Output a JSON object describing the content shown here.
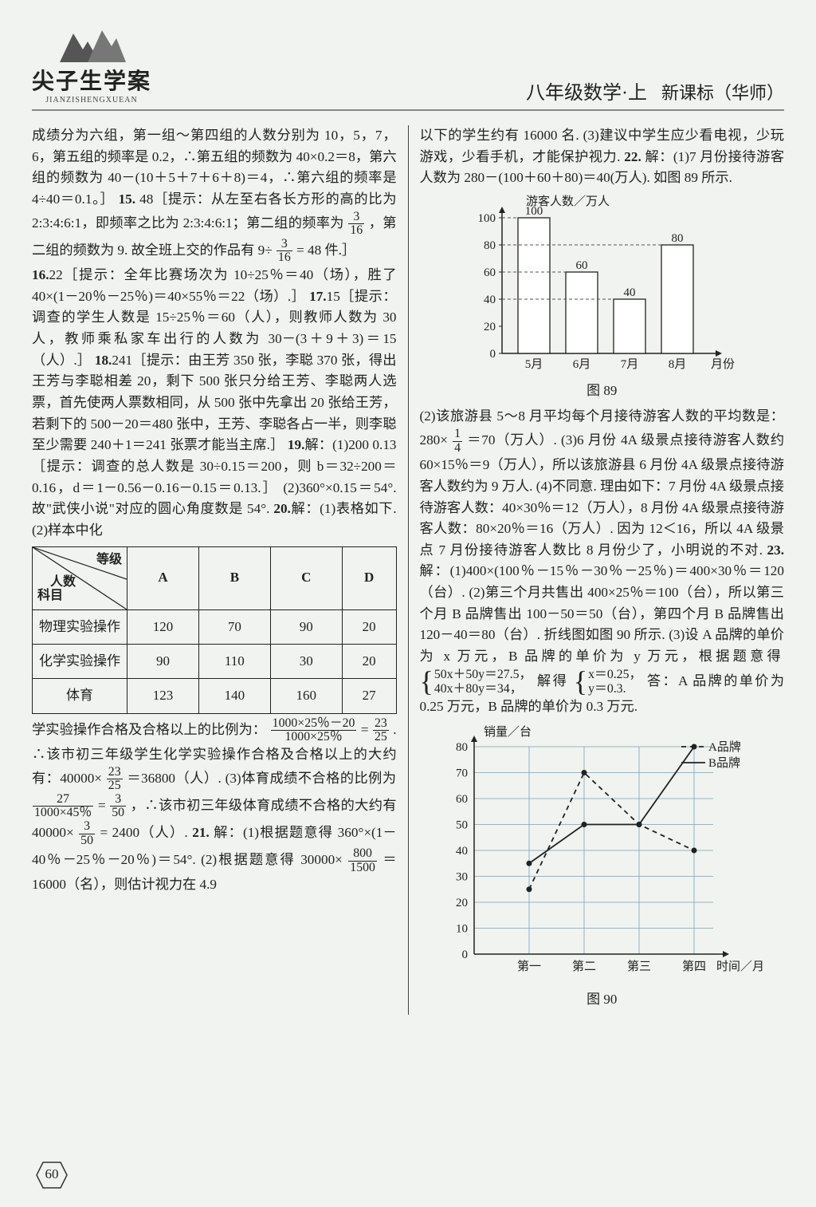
{
  "header": {
    "logo_title": "尖子生学案",
    "logo_pinyin": "JIANZISHENGXUEAN",
    "right_main": "八年级数学·上",
    "right_sub": "新课标（华师）"
  },
  "page_number": "60",
  "left": {
    "para1_a": "成绩分为六组，第一组～第四组的人数分别为 10，5，7，6，第五组的频率是 0.2，∴第五组的频数为 40×0.2＝8，第六组的频数为 40－(10＋5＋7＋6＋8)＝4，∴第六组的频率是 4÷40＝0.1。］ ",
    "q15": "15.",
    "para15": "48［提示：从左至右各长方形的高的比为 2:3:4:6:1，即频率之比为 2:3:4:6:1；第二组的频率为 ",
    "frac_3_16_n": "3",
    "frac_3_16_d": "16",
    "para15b": "，第二组的频数为 9. 故全班上交的作品有 9÷",
    "para15c": " = 48 件.］",
    "q16": "16.",
    "para16": "22［提示：全年比赛场次为 10÷25％＝40（场），胜了 40×(1－20％－25％)＝40×55％＝22（场）.］ ",
    "q17": "17.",
    "para17": "15［提示：调查的学生人数是 15÷25％＝60（人），则教师人数为 30 人，教师乘私家车出行的人数为 30－(3＋9＋3)＝15（人）.］ ",
    "q18": "18.",
    "para18": "241［提示：由王芳 350 张，李聪 370 张，得出王芳与李聪相差 20，剩下 500 张只分给王芳、李聪两人选票，首先使两人票数相同，从 500 张中先拿出 20 张给王芳，若剩下的 500－20＝480 张中，王芳、李聪各占一半，则李聪至少需要 240＋1＝241 张票才能当主席.］ ",
    "q19": "19.",
    "para19": "解：(1)200  0.13［提示：调查的总人数是 30÷0.15＝200，则 b＝32÷200＝0.16，d＝1－0.56－0.16－0.15＝0.13.］ (2)360°×0.15＝54°. 故\"武侠小说\"对应的圆心角度数是 54°. ",
    "q20": "20.",
    "para20a": "解：(1)表格如下.  (2)样本中化",
    "table": {
      "diag_top": "等级",
      "diag_mid": "人数",
      "diag_bot": "科目",
      "cols": [
        "A",
        "B",
        "C",
        "D"
      ],
      "rows": [
        {
          "label": "物理实验操作",
          "vals": [
            "120",
            "70",
            "90",
            "20"
          ]
        },
        {
          "label": "化学实验操作",
          "vals": [
            "90",
            "110",
            "30",
            "20"
          ]
        },
        {
          "label": "体育",
          "vals": [
            "123",
            "140",
            "160",
            "27"
          ]
        }
      ]
    },
    "para20b_a": "学实验操作合格及合格以上的比例为：",
    "frac_big_n": "1000×25％－20",
    "frac_big_d": "1000×25％",
    "eq_a": " = ",
    "frac_23_25_n": "23",
    "frac_23_25_d": "25",
    "para20b_b": ". ∴该市初三年级学生化学实验操作合格及合格以上的大约有：40000×",
    "para20b_c": "＝36800（人）.  (3)体育成绩不合格的比例为 ",
    "frac_27_n": "27",
    "frac_27_d": "1000×45％",
    "eq_b": " = ",
    "frac_3_50_n": "3",
    "frac_3_50_d": "50",
    "para20b_d": "，∴该市初三年级体育成绩不合格的大约有 40000×",
    "para20b_e": " = 2400（人）. ",
    "q21": "21.",
    "para21": "解：(1)根据题意得 360°×(1－40％－25％－20％)＝54°.  (2)根据题意得 30000×",
    "frac_800_n": "800",
    "frac_800_d": "1500",
    "para21b": "＝16000（名），则估计视力在 4.9"
  },
  "right": {
    "para_cont": "以下的学生约有 16000 名.  (3)建议中学生应少看电视，少玩游戏，少看手机，才能保护视力. ",
    "q22": "22.",
    "para22": "解：(1)7 月份接待游客人数为 280－(100＋60＋80)＝40(万人). 如图 89 所示.",
    "chart89": {
      "ylabel": "游客人数／万人",
      "yticks": [
        "0",
        "20",
        "40",
        "60",
        "80",
        "100"
      ],
      "xticks": [
        "5月",
        "6月",
        "7月",
        "8月"
      ],
      "xlabel_tail": "月份",
      "values": [
        100,
        60,
        40,
        80
      ],
      "bar_color": "#ffffff",
      "axis_color": "#222222",
      "dash_color": "#555555"
    },
    "fig89": "图 89",
    "para22b_a": "(2)该旅游县 5～8 月平均每个月接待游客人数的平均数是：280×",
    "frac_1_4_n": "1",
    "frac_1_4_d": "4",
    "para22b_b": "＝70（万人）.  (3)6 月份 4A 级景点接待游客人数约 60×15％＝9（万人），所以该旅游县 6 月份 4A 级景点接待游客人数约为 9 万人.  (4)不同意. 理由如下：7 月份 4A 级景点接待游客人数：40×30％＝12（万人），8 月份 4A 级景点接待游客人数：80×20％＝16（万人）. 因为 12＜16，所以 4A 级景点 7 月份接待游客人数比 8 月份少了，小明说的不对. ",
    "q23": "23.",
    "para23a": "解：(1)400×(100％－15％－30％－25％)＝400×30％＝120（台）.  (2)第三个月共售出 400×25％＝100（台），所以第三个月 B 品牌售出 100－50＝50（台），第四个月 B 品牌售出 120－40＝80（台）. 折线图如图 90 所示.  (3)设 A 品牌的单价为 x 万元，B 品牌的单价为 y 万元，根据题意得 ",
    "sys1a": "50x＋50y＝27.5，",
    "sys1b": "40x＋80y＝34，",
    "mid": "解得",
    "sys2a": "x＝0.25，",
    "sys2b": "y＝0.3.",
    "ans": "答：A 品牌的单价为 0.25 万元，B 品牌的单价为 0.3 万元.",
    "chart90": {
      "ylabel": "销量／台",
      "yticks": [
        "0",
        "10",
        "20",
        "30",
        "40",
        "50",
        "60",
        "70",
        "80"
      ],
      "xticks": [
        "第一",
        "第二",
        "第三",
        "第四"
      ],
      "xlabel_tail": "时间／月",
      "seriesA": {
        "label": "A品牌",
        "dash": true,
        "vals": [
          25,
          70,
          50,
          40
        ]
      },
      "seriesB": {
        "label": "B品牌",
        "dash": false,
        "vals": [
          35,
          50,
          50,
          80
        ]
      },
      "grid_color": "#7aa0c4",
      "line_color": "#222222"
    },
    "fig90": "图 90"
  }
}
